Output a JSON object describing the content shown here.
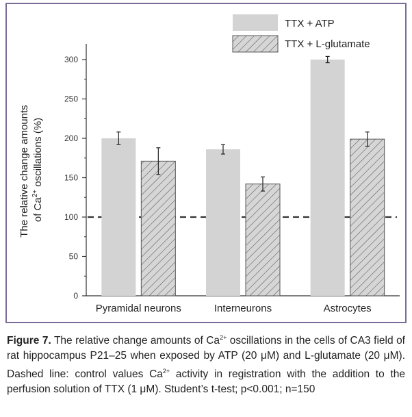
{
  "chart_data": {
    "type": "bar",
    "categories": [
      "Pyramidal neurons",
      "Interneurons",
      "Astrocytes"
    ],
    "series": [
      {
        "name": "TTX + ATP",
        "values": [
          200,
          186,
          300
        ],
        "errors": [
          8,
          6,
          4
        ],
        "fill": "#d3d3d3",
        "pattern": "solid"
      },
      {
        "name": "TTX + L-glutamate",
        "values": [
          171,
          142,
          199
        ],
        "errors": [
          17,
          9,
          9
        ],
        "fill": "#d3d3d3",
        "pattern": "hatched"
      }
    ],
    "ylabel_line1": "The relative change amounts",
    "ylabel_line2_pre": "of Ca",
    "ylabel_line2_sup": "2+",
    "ylabel_line2_post": " oscillations (%)",
    "ylim": [
      0,
      320
    ],
    "yticks": [
      "0",
      "50",
      "100",
      "150",
      "200",
      "250",
      "300"
    ],
    "reference_line": {
      "value": 100,
      "style": "dashed"
    },
    "legend_position": "top-right",
    "grid": false
  },
  "caption": {
    "label": "Figure 7.",
    "t1": " The relative change amounts of Ca",
    "s1": "2+",
    "t2": " oscillations in the cells of CA3 field of rat hippocampus P21–25 when exposed by ATP (20 μM) and L-glutamate (20 μM). Dashed line: control values Ca",
    "s2": "2+",
    "t3": " activity in registration with the addition to the perfusion solution of TTX (1 μM). Student’s t-test; p<0.001; n=150"
  }
}
